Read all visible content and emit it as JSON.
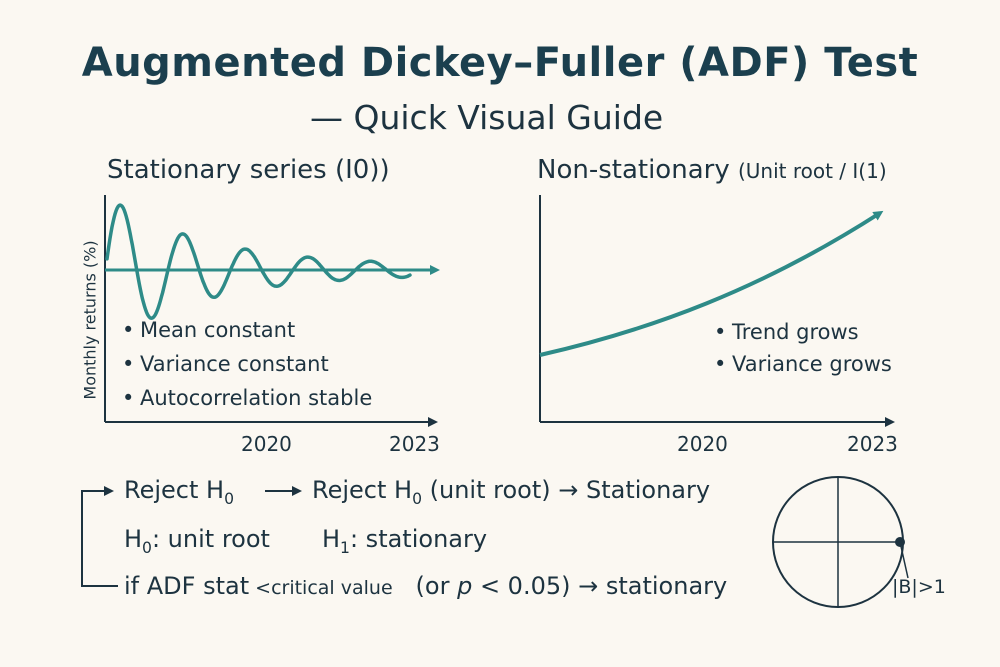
{
  "title": "Augmented Dickey–Fuller (ADF) Test",
  "subtitle": "— Quick Visual Guide",
  "left_panel": {
    "title": "Stationary series (I0))",
    "ylabel": "Monthly returns (%)",
    "bullets": [
      "Mean constant",
      "Variance constant",
      "Autocorrelation stable"
    ],
    "ticks": [
      "2020",
      "2023"
    ]
  },
  "right_panel": {
    "title_main": "Non-stationary",
    "title_paren": "(Unit root / I(1)",
    "bullets": [
      "Trend grows",
      "Variance grows"
    ],
    "ticks": [
      "2020",
      "2023"
    ]
  },
  "flow": {
    "reject_a": "Reject H",
    "reject_a_sub": "0",
    "reject_b": "Reject H",
    "reject_b_sub": "0",
    "reject_b_tail": " (unit root) → Stationary",
    "h0": "H",
    "h0_sub": "0",
    "h0_tail": ": unit root",
    "h1": "H",
    "h1_sub": "1",
    "h1_tail": ": stationary",
    "rule_a": "if ADF stat",
    "rule_b": " <critical value",
    "rule_c": "(or ",
    "rule_p": "p",
    "rule_d": " < 0.05) → stationary"
  },
  "unit_circle": {
    "label": "|B|>1"
  },
  "colors": {
    "accent": "#2e8b88",
    "ink": "#1d3340",
    "background": "#fbf8f2"
  }
}
